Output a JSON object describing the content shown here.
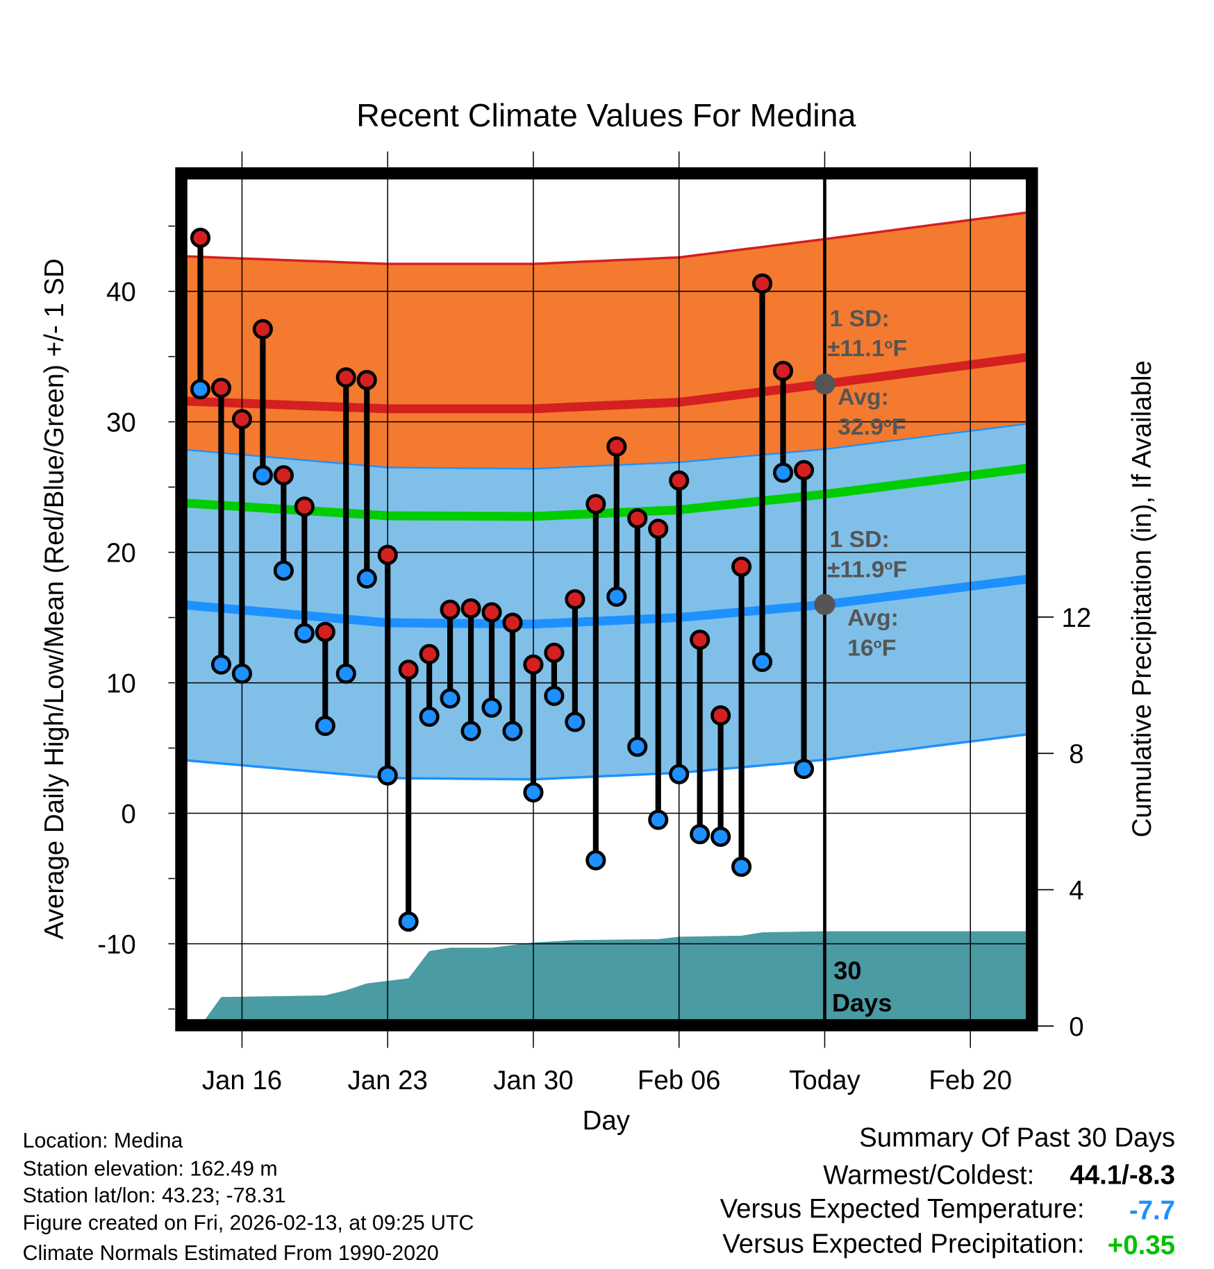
{
  "chart_data": {
    "type": "line",
    "title": "Recent Climate Values For Medina",
    "xlabel": "Day",
    "ylabel": "Average Daily High/Low/Mean (Red/Blue/Green) +/- 1 SD",
    "y2label": "Cumulative Precipitation (in), If Available",
    "ylim": [
      -15.8,
      48.6
    ],
    "y2lim": [
      0,
      23.6
    ],
    "yticks": [
      "40",
      "30",
      "20",
      "10",
      "0",
      "-10"
    ],
    "yticks_values": [
      40,
      30,
      20,
      10,
      0,
      -10
    ],
    "y2ticks": [
      "12",
      "8",
      "4",
      "0"
    ],
    "y2ticks_values": [
      12,
      8,
      4,
      0
    ],
    "xticks": [
      "Jan 16",
      "Jan 23",
      "Jan 30",
      "Feb 06",
      "Today",
      "Feb 20"
    ],
    "xticks_doy": [
      16,
      23,
      30,
      37,
      44,
      51
    ],
    "xlim_doy": [
      13.35,
      53.7
    ],
    "today_doy": 44,
    "grid": true,
    "days": [
      "Jan 14",
      "Jan 15",
      "Jan 16",
      "Jan 17",
      "Jan 18",
      "Jan 19",
      "Jan 20",
      "Jan 21",
      "Jan 22",
      "Jan 23",
      "Jan 24",
      "Jan 25",
      "Jan 26",
      "Jan 27",
      "Jan 28",
      "Jan 29",
      "Jan 30",
      "Jan 31",
      "Feb 01",
      "Feb 02",
      "Feb 03",
      "Feb 04",
      "Feb 05",
      "Feb 06",
      "Feb 07",
      "Feb 08",
      "Feb 09",
      "Feb 10",
      "Feb 11",
      "Feb 12"
    ],
    "series": [
      {
        "name": "Daily High",
        "color": "#d42020",
        "values": [
          44.1,
          32.6,
          30.2,
          37.1,
          25.9,
          23.5,
          13.9,
          33.4,
          33.2,
          19.8,
          11.0,
          12.2,
          15.6,
          15.7,
          15.4,
          14.6,
          11.4,
          12.3,
          16.4,
          23.7,
          28.1,
          22.6,
          21.8,
          25.5,
          13.3,
          7.5,
          18.9,
          40.6,
          33.9,
          26.3
        ]
      },
      {
        "name": "Daily Low",
        "color": "#1e90ff",
        "values": [
          32.5,
          11.4,
          10.7,
          25.9,
          18.6,
          13.8,
          6.7,
          10.7,
          18.0,
          2.9,
          -8.3,
          7.4,
          8.8,
          6.3,
          8.1,
          6.3,
          1.6,
          9.0,
          7.0,
          -3.6,
          16.6,
          5.1,
          -0.5,
          3.0,
          -1.6,
          -1.8,
          -4.1,
          11.6,
          26.1,
          3.4
        ]
      }
    ],
    "normals": {
      "doy": [
        13,
        23,
        30,
        37,
        44,
        54
      ],
      "high_avg": [
        31.6,
        31.0,
        31.0,
        31.5,
        32.9,
        35.0
      ],
      "high_sd": 11.1,
      "low_avg": [
        16.0,
        14.6,
        14.5,
        15.0,
        16.0,
        18.0
      ],
      "low_sd": 11.9
    },
    "precip": {
      "doy": [
        13.35,
        14,
        15,
        20,
        21,
        22,
        24,
        25,
        26,
        28,
        30,
        32,
        36,
        37,
        40,
        41,
        44,
        53.7
      ],
      "cumulative_in": [
        0,
        0,
        0.85,
        0.9,
        1.05,
        1.25,
        1.4,
        2.2,
        2.3,
        2.3,
        2.45,
        2.52,
        2.55,
        2.62,
        2.65,
        2.75,
        2.78,
        2.78
      ]
    },
    "annotations": {
      "high_sd_label": "1 SD:",
      "high_sd_value": "±11.1",
      "high_avg_label": "Avg:",
      "high_avg_value": "32.9",
      "low_sd_label": "1 SD:",
      "low_sd_value": "±11.9",
      "low_avg_label": "Avg:",
      "low_avg_value": "16",
      "deg_sup": "o",
      "unit": "F",
      "days_label_1": "30",
      "days_label_2": "Days"
    },
    "colors": {
      "high_band": "#f47a30",
      "mid_band": "#930e14",
      "low_band": "#80c0e8",
      "high_line": "#d42020",
      "low_line": "#1e90ff",
      "mean_line": "#00cc00",
      "precip": "#4a9ba3",
      "marker_avg": "#555555"
    }
  },
  "info": {
    "location": "Location: Medina",
    "elevation": "Station elevation: 162.49 m",
    "latlon": "Station lat/lon: 43.23; -78.31",
    "created": "Figure created on Fri, 2026-02-13, at 09:25 UTC",
    "normals": "Climate Normals Estimated From 1990-2020"
  },
  "summary": {
    "title": "Summary Of Past 30 Days",
    "warmest_label": "Warmest/Coldest:",
    "warmest_value": "44.1/-8.3",
    "temp_label": "Versus Expected Temperature:",
    "temp_value": "-7.7",
    "temp_color": "#1e90ff",
    "precip_label": "Versus Expected Precipitation:",
    "precip_value": "+0.35",
    "precip_color": "#00c000"
  }
}
